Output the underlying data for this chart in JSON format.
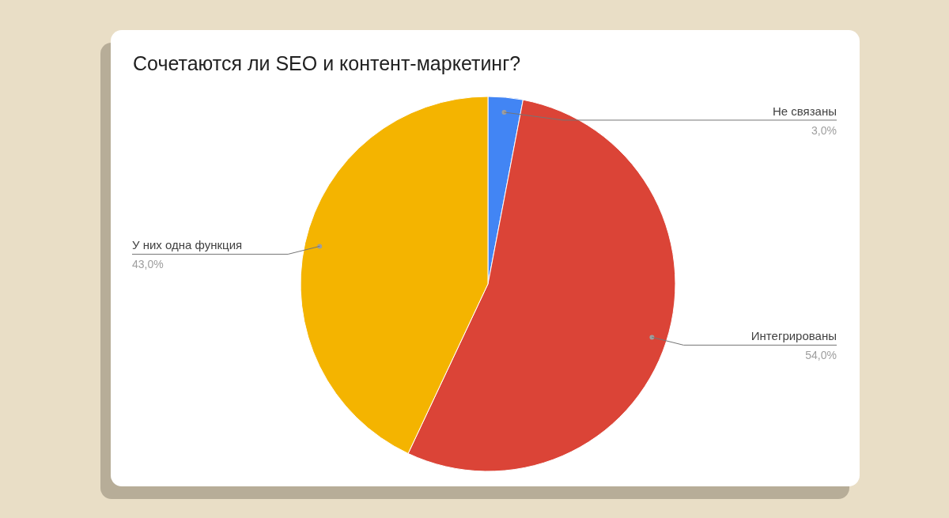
{
  "chart_data": {
    "type": "pie",
    "title": "Сочетаются ли SEO и контент-маркетинг?",
    "categories": [
      "Не связаны",
      "Интегрированы",
      "У них одна функция"
    ],
    "values": [
      3,
      54,
      43
    ],
    "colors": [
      "#4285f4",
      "#db4437",
      "#f4b400"
    ],
    "value_labels": [
      "3,0%",
      "54,0%",
      "43,0%"
    ]
  }
}
